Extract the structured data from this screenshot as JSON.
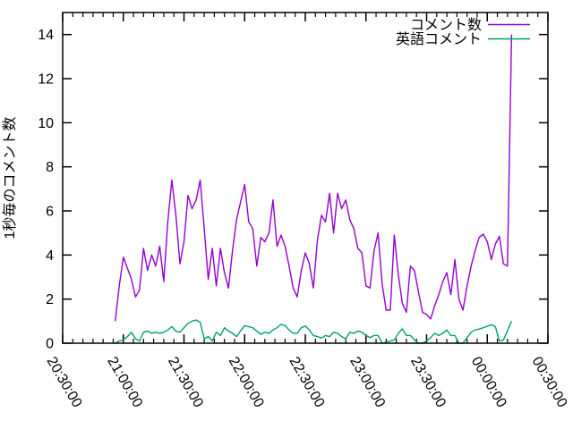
{
  "chart_data": {
    "type": "line",
    "title": "",
    "xlabel": "",
    "ylabel": "1秒毎のコメント数",
    "grid": false,
    "legend_position": "top-right-inside",
    "background_color": "#ffffff",
    "axis_color": "#000000",
    "ylim": [
      0,
      15
    ],
    "y_ticks": [
      0,
      2,
      4,
      6,
      8,
      10,
      12,
      14
    ],
    "x_tick_labels": [
      "20:30:00",
      "21:00:00",
      "21:30:00",
      "22:00:00",
      "22:30:00",
      "23:00:00",
      "23:30:00",
      "00:00:00",
      "00:30:00"
    ],
    "x_minor_tick_minutes": 5,
    "x": [
      "20:56",
      "20:58",
      "21:00",
      "21:02",
      "21:04",
      "21:06",
      "21:08",
      "21:10",
      "21:12",
      "21:14",
      "21:16",
      "21:18",
      "21:20",
      "21:22",
      "21:24",
      "21:26",
      "21:28",
      "21:30",
      "21:32",
      "21:34",
      "21:36",
      "21:38",
      "21:40",
      "21:42",
      "21:44",
      "21:46",
      "21:48",
      "21:50",
      "21:52",
      "21:54",
      "21:56",
      "21:58",
      "22:00",
      "22:02",
      "22:04",
      "22:06",
      "22:08",
      "22:10",
      "22:12",
      "22:14",
      "22:16",
      "22:18",
      "22:20",
      "22:22",
      "22:24",
      "22:26",
      "22:28",
      "22:30",
      "22:32",
      "22:34",
      "22:36",
      "22:38",
      "22:40",
      "22:42",
      "22:44",
      "22:46",
      "22:48",
      "22:50",
      "22:52",
      "22:54",
      "22:56",
      "22:58",
      "23:00",
      "23:02",
      "23:04",
      "23:06",
      "23:08",
      "23:10",
      "23:12",
      "23:14",
      "23:16",
      "23:18",
      "23:20",
      "23:22",
      "23:24",
      "23:26",
      "23:28",
      "23:30",
      "23:32",
      "23:34",
      "23:36",
      "23:38",
      "23:40",
      "23:42",
      "23:44",
      "23:46",
      "23:48",
      "23:50",
      "23:52",
      "23:54",
      "23:56",
      "23:58",
      "00:00",
      "00:02",
      "00:04",
      "00:06",
      "00:08",
      "00:10",
      "00:12"
    ],
    "series": [
      {
        "name": "コメント数",
        "color": "#9400d3",
        "values": [
          1.0,
          2.6,
          3.9,
          3.4,
          2.9,
          2.1,
          2.4,
          4.3,
          3.3,
          4.0,
          3.5,
          4.4,
          2.8,
          5.5,
          7.4,
          5.8,
          3.6,
          4.6,
          6.7,
          6.1,
          6.5,
          7.4,
          5.2,
          2.9,
          4.3,
          2.6,
          4.3,
          3.2,
          2.5,
          4.2,
          5.6,
          6.4,
          7.2,
          5.5,
          5.2,
          3.5,
          4.8,
          4.6,
          5.0,
          6.5,
          4.4,
          4.9,
          4.4,
          3.5,
          2.5,
          2.1,
          3.3,
          4.1,
          3.6,
          2.5,
          4.7,
          5.8,
          5.5,
          6.8,
          5.0,
          6.8,
          6.1,
          6.5,
          5.6,
          5.2,
          4.3,
          4.1,
          2.6,
          2.5,
          4.2,
          5.0,
          2.7,
          1.5,
          1.5,
          4.9,
          3.1,
          1.8,
          1.4,
          3.5,
          3.3,
          2.3,
          1.4,
          1.3,
          1.1,
          1.7,
          2.2,
          2.8,
          3.2,
          2.2,
          3.8,
          2.0,
          1.5,
          2.6,
          3.5,
          4.2,
          4.8,
          4.95,
          4.6,
          3.8,
          4.5,
          4.85,
          3.6,
          3.5,
          14.0
        ]
      },
      {
        "name": "英語コメント",
        "color": "#009e73",
        "values": [
          0.0,
          0.1,
          0.15,
          0.3,
          0.5,
          0.2,
          0.1,
          0.5,
          0.55,
          0.45,
          0.5,
          0.45,
          0.5,
          0.6,
          0.75,
          0.55,
          0.5,
          0.7,
          0.9,
          1.0,
          1.05,
          0.95,
          0.2,
          0.3,
          0.1,
          0.5,
          0.35,
          0.7,
          0.55,
          0.45,
          0.3,
          0.55,
          0.8,
          0.75,
          0.7,
          0.55,
          0.4,
          0.5,
          0.45,
          0.6,
          0.7,
          0.85,
          0.8,
          0.6,
          0.45,
          0.45,
          0.7,
          0.78,
          0.6,
          0.35,
          0.3,
          0.23,
          0.35,
          0.3,
          0.5,
          0.45,
          0.3,
          0.2,
          0.5,
          0.45,
          0.55,
          0.5,
          0.35,
          0.25,
          0.35,
          0.35,
          0.0,
          0.05,
          0.1,
          0.15,
          0.45,
          0.65,
          0.35,
          0.35,
          0.15,
          0.0,
          0.0,
          0.1,
          0.25,
          0.45,
          0.35,
          0.45,
          0.6,
          0.35,
          0.35,
          0.0,
          0.0,
          0.25,
          0.5,
          0.6,
          0.64,
          0.7,
          0.77,
          0.84,
          0.75,
          0.1,
          0.15,
          0.56,
          1.0
        ]
      }
    ]
  }
}
